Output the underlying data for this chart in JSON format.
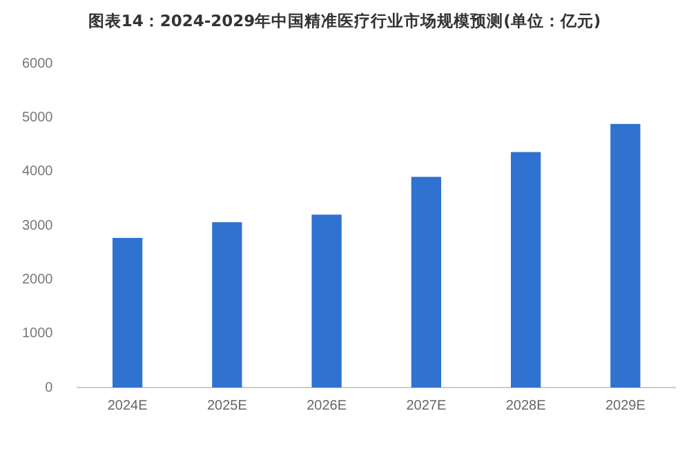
{
  "chart_data": {
    "type": "bar",
    "title": "图表14：2024-2029年中国精准医疗行业市场规模预测(单位：亿元)",
    "categories": [
      "2024E",
      "2025E",
      "2026E",
      "2027E",
      "2028E",
      "2029E"
    ],
    "values": [
      2770,
      3060,
      3200,
      3900,
      4360,
      4880
    ],
    "color": "#2f72cf",
    "ylim": [
      0,
      6000
    ],
    "yticks": [
      0,
      1000,
      2000,
      3000,
      4000,
      5000,
      6000
    ],
    "grid": false,
    "legend": false
  }
}
